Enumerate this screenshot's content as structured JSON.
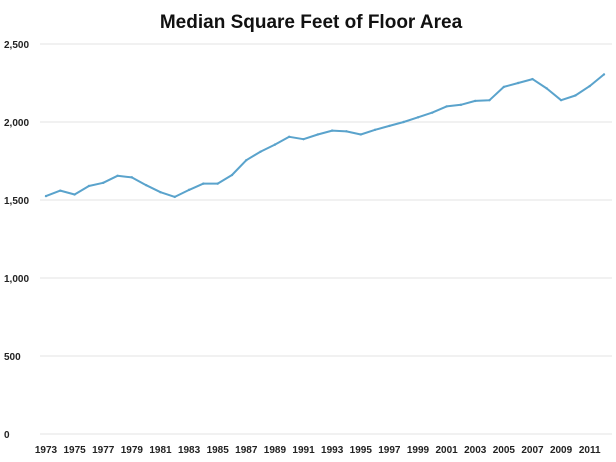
{
  "chart_data": {
    "type": "line",
    "title": "Median Square Feet of Floor Area",
    "xlabel": "",
    "ylabel": "",
    "ylim": [
      0,
      2500
    ],
    "yticks": [
      0,
      500,
      1000,
      1500,
      2000,
      2500
    ],
    "ytick_labels": [
      "0",
      "500",
      "1,000",
      "1,500",
      "2,000",
      "2,500"
    ],
    "xticks": [
      1973,
      1975,
      1977,
      1979,
      1981,
      1983,
      1985,
      1987,
      1989,
      1991,
      1993,
      1995,
      1997,
      1999,
      2001,
      2003,
      2005,
      2007,
      2009,
      2011
    ],
    "xtick_labels": [
      "1973",
      "1975",
      "1977",
      "1979",
      "1981",
      "1983",
      "1985",
      "1987",
      "1989",
      "1991",
      "1993",
      "1995",
      "1997",
      "1999",
      "2001",
      "2003",
      "2005",
      "2007",
      "2009",
      "2011"
    ],
    "grid": true,
    "color": "#5aa3cc",
    "x": [
      1973,
      1974,
      1975,
      1976,
      1977,
      1978,
      1979,
      1980,
      1981,
      1982,
      1983,
      1984,
      1985,
      1986,
      1987,
      1988,
      1989,
      1990,
      1991,
      1992,
      1993,
      1994,
      1995,
      1996,
      1997,
      1998,
      1999,
      2000,
      2001,
      2002,
      2003,
      2004,
      2005,
      2006,
      2007,
      2008,
      2009,
      2010,
      2011,
      2012
    ],
    "y": [
      1525,
      1560,
      1535,
      1590,
      1610,
      1655,
      1645,
      1595,
      1550,
      1520,
      1565,
      1605,
      1605,
      1660,
      1755,
      1810,
      1855,
      1905,
      1890,
      1920,
      1945,
      1940,
      1920,
      1950,
      1975,
      2000,
      2030,
      2060,
      2100,
      2110,
      2135,
      2140,
      2225,
      2250,
      2275,
      2215,
      2140,
      2170,
      2230,
      2305
    ]
  }
}
